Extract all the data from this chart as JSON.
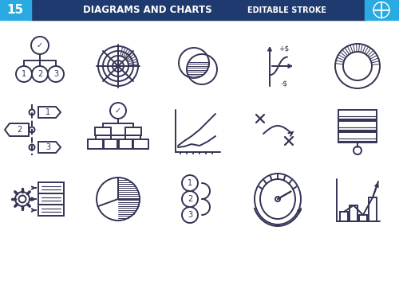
{
  "bg_color": "#ffffff",
  "header_bg": "#1e3a6e",
  "header_accent": "#29abe2",
  "icon_color": "#333355",
  "icon_lw": 1.4,
  "fig_w": 5.0,
  "fig_h": 3.58,
  "cols": [
    50,
    148,
    248,
    348,
    448
  ],
  "rows": [
    275,
    195,
    108
  ]
}
